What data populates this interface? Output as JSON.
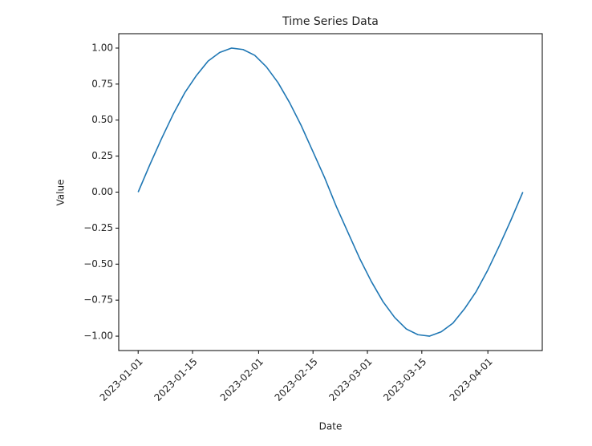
{
  "chart_data": {
    "type": "line",
    "title": "Time Series Data",
    "x_label": "Date",
    "y_label": "Value",
    "x": [
      "2023-01-01",
      "2023-01-04",
      "2023-01-07",
      "2023-01-10",
      "2023-01-13",
      "2023-01-16",
      "2023-01-19",
      "2023-01-22",
      "2023-01-25",
      "2023-01-28",
      "2023-01-31",
      "2023-02-03",
      "2023-02-06",
      "2023-02-09",
      "2023-02-12",
      "2023-02-15",
      "2023-02-18",
      "2023-02-21",
      "2023-02-24",
      "2023-02-27",
      "2023-03-02",
      "2023-03-05",
      "2023-03-08",
      "2023-03-11",
      "2023-03-14",
      "2023-03-17",
      "2023-03-20",
      "2023-03-23",
      "2023-03-26",
      "2023-03-29",
      "2023-04-01",
      "2023-04-04",
      "2023-04-07",
      "2023-04-10"
    ],
    "series": [
      {
        "color": "#1f77b4",
        "values": [
          0,
          0.19,
          0.37,
          0.54,
          0.69,
          0.81,
          0.91,
          0.97,
          1.0,
          0.99,
          0.95,
          0.87,
          0.76,
          0.62,
          0.46,
          0.28,
          0.1,
          -0.1,
          -0.28,
          -0.46,
          -0.62,
          -0.76,
          -0.87,
          -0.95,
          -0.99,
          -1.0,
          -0.97,
          -0.91,
          -0.81,
          -0.69,
          -0.54,
          -0.37,
          -0.19,
          0
        ]
      }
    ],
    "xlim": [
      "2022-12-27",
      "2023-04-15"
    ],
    "xticks": [
      "2023-01-01",
      "2023-01-15",
      "2023-02-01",
      "2023-02-15",
      "2023-03-01",
      "2023-03-15",
      "2023-04-01"
    ],
    "ylim": [
      -1.1,
      1.1
    ],
    "yticks": [
      {
        "value": 1,
        "label": "1.00"
      },
      {
        "value": 0.75,
        "label": "0.75"
      },
      {
        "value": 0.5,
        "label": "0.50"
      },
      {
        "value": 0.25,
        "label": "0.25"
      },
      {
        "value": 0,
        "label": "0.00"
      },
      {
        "value": -0.25,
        "label": "−0.25"
      },
      {
        "value": -0.5,
        "label": "−0.50"
      },
      {
        "value": -0.75,
        "label": "−0.75"
      },
      {
        "value": -1,
        "label": "−1.00"
      }
    ]
  }
}
